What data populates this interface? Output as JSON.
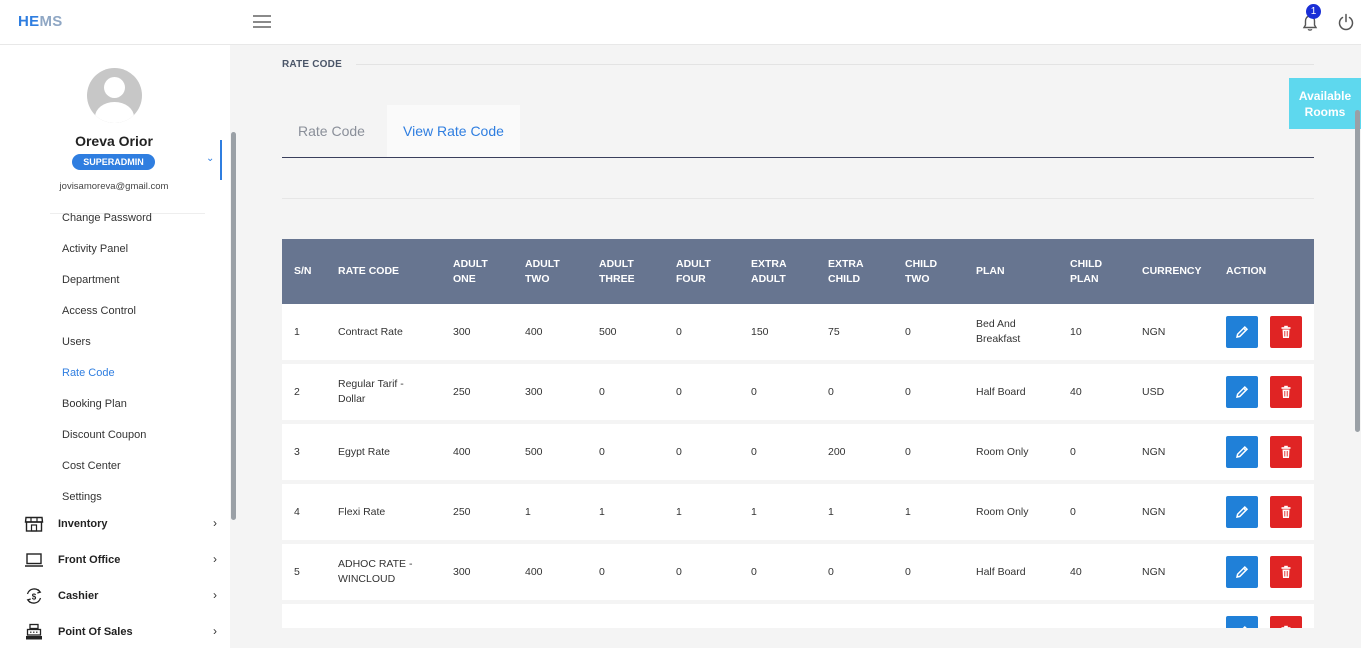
{
  "app": {
    "logo_a": "HE",
    "logo_b": "MS",
    "notifications": "1"
  },
  "user": {
    "name": "Oreva Orior",
    "role": "SUPERADMIN",
    "email": "jovisamoreva@gmail.com"
  },
  "sidebar": {
    "subitems": [
      "Change Password",
      "Activity Panel",
      "Department",
      "Access Control",
      "Users",
      "Rate Code",
      "Booking Plan",
      "Discount Coupon",
      "Cost Center",
      "Settings"
    ],
    "active_subitem": "Rate Code",
    "items": [
      {
        "label": "Inventory"
      },
      {
        "label": "Front Office"
      },
      {
        "label": "Cashier"
      },
      {
        "label": "Point Of Sales"
      }
    ]
  },
  "page": {
    "section_title": "RATE CODE",
    "tabs": [
      "Rate Code",
      "View Rate Code"
    ],
    "active_tab": "View Rate Code",
    "available_rooms": "Available Rooms"
  },
  "table": {
    "headers": {
      "sn": "S/N",
      "rate_code": "RATE CODE",
      "adult_one": "ADULT ONE",
      "adult_two": "ADULT TWO",
      "adult_three": "ADULT THREE",
      "adult_four": "ADULT FOUR",
      "extra_adult": "EXTRA ADULT",
      "extra_child": "EXTRA CHILD",
      "child_two": "CHILD TWO",
      "plan": "PLAN",
      "child_plan": "CHILD PLAN",
      "currency": "CURRENCY",
      "action": "ACTION"
    },
    "rows": [
      {
        "sn": "1",
        "rate_code": "Contract Rate",
        "adult_one": "300",
        "adult_two": "400",
        "adult_three": "500",
        "adult_four": "0",
        "extra_adult": "150",
        "extra_child": "75",
        "child_two": "0",
        "plan": "Bed And Breakfast",
        "child_plan": "10",
        "currency": "NGN"
      },
      {
        "sn": "2",
        "rate_code": "Regular Tarif - Dollar",
        "adult_one": "250",
        "adult_two": "300",
        "adult_three": "0",
        "adult_four": "0",
        "extra_adult": "0",
        "extra_child": "0",
        "child_two": "0",
        "plan": "Half Board",
        "child_plan": "40",
        "currency": "USD"
      },
      {
        "sn": "3",
        "rate_code": "Egypt Rate",
        "adult_one": "400",
        "adult_two": "500",
        "adult_three": "0",
        "adult_four": "0",
        "extra_adult": "0",
        "extra_child": "200",
        "child_two": "0",
        "plan": "Room Only",
        "child_plan": "0",
        "currency": "NGN"
      },
      {
        "sn": "4",
        "rate_code": "Flexi Rate",
        "adult_one": "250",
        "adult_two": "1",
        "adult_three": "1",
        "adult_four": "1",
        "extra_adult": "1",
        "extra_child": "1",
        "child_two": "1",
        "plan": "Room Only",
        "child_plan": "0",
        "currency": "NGN"
      },
      {
        "sn": "5",
        "rate_code": "ADHOC RATE - WINCLOUD",
        "adult_one": "300",
        "adult_two": "400",
        "adult_three": "0",
        "adult_four": "0",
        "extra_adult": "0",
        "extra_child": "0",
        "child_two": "0",
        "plan": "Half Board",
        "child_plan": "40",
        "currency": "NGN"
      }
    ]
  },
  "colors": {
    "accent": "#2f7ee0",
    "header_bg": "#677590",
    "edit": "#2080d8",
    "delete": "#e02424",
    "available": "#5ed8ee"
  }
}
